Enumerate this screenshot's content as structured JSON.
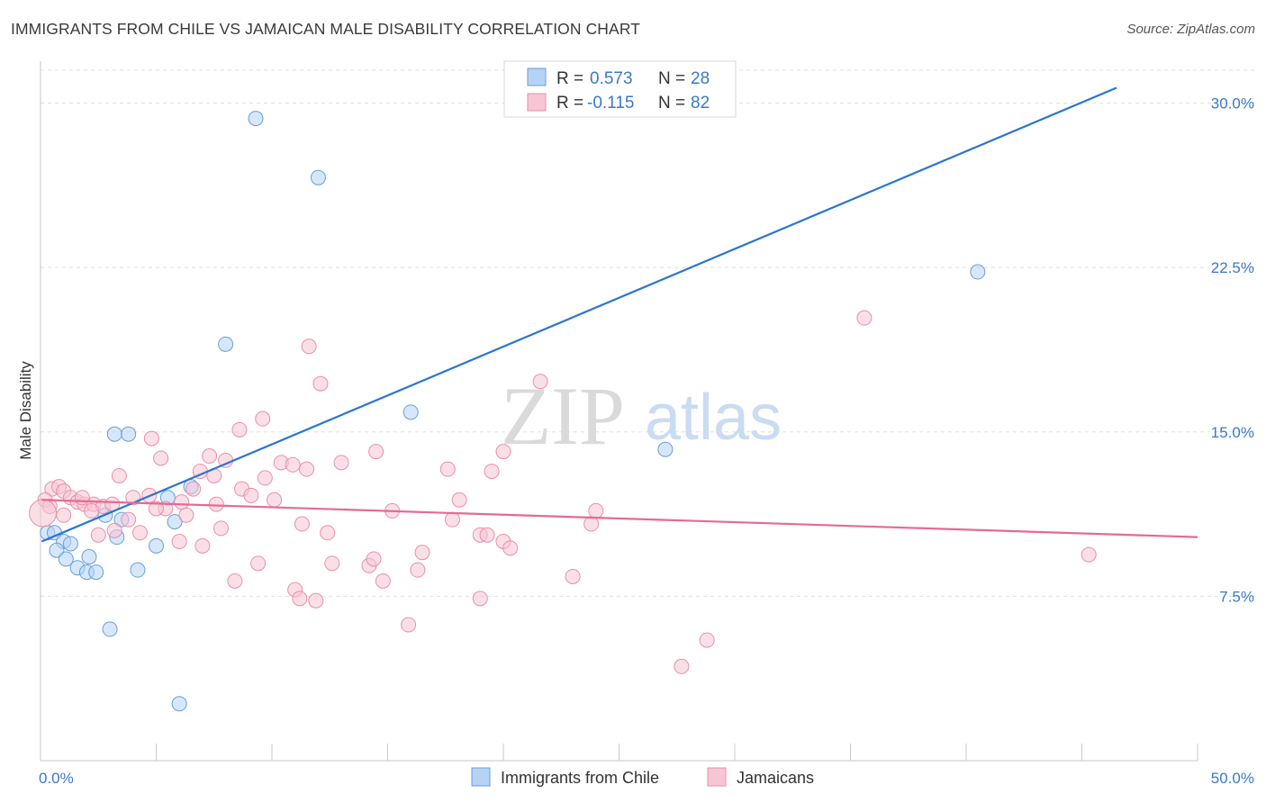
{
  "header": {
    "title": "IMMIGRANTS FROM CHILE VS JAMAICAN MALE DISABILITY CORRELATION CHART",
    "source": "Source: ZipAtlas.com"
  },
  "watermark": {
    "zip": "ZIP",
    "atlas": "atlas"
  },
  "legend": {
    "rows": [
      {
        "r_label": "R = ",
        "r_value": "0.573",
        "n_label": "N = ",
        "n_value": "28"
      },
      {
        "r_label": "R = ",
        "r_value": "-0.115",
        "n_label": "N = ",
        "n_value": "82"
      }
    ]
  },
  "colors": {
    "blue_fill": "#b6d3f5",
    "blue_stroke": "#6a9fd8",
    "blue_line": "#2b74d0",
    "pink_fill": "#f8c5d4",
    "pink_stroke": "#e98fab",
    "pink_line": "#e56a93",
    "tick_text": "#3b79c8",
    "grid": "#e0e0e0"
  },
  "chart_data": {
    "type": "scatter",
    "title": "IMMIGRANTS FROM CHILE VS JAMAICAN MALE DISABILITY CORRELATION CHART",
    "xlabel": "",
    "ylabel": "Male Disability",
    "xlim": [
      0,
      50
    ],
    "ylim": [
      0,
      31.5
    ],
    "x_tick_labels": [
      "0.0%",
      "50.0%"
    ],
    "y_ticks": [
      7.5,
      15.0,
      22.5,
      30.0
    ],
    "y_tick_labels": [
      "7.5%",
      "15.0%",
      "22.5%",
      "30.0%"
    ],
    "grid": true,
    "legend_position": "top-center",
    "series": [
      {
        "name": "Immigrants from Chile",
        "color": "#6a9fd8",
        "trend": {
          "x": [
            0.05,
            46.5
          ],
          "y": [
            10.0,
            30.7
          ]
        },
        "points": [
          [
            9.3,
            29.3
          ],
          [
            12.0,
            26.6
          ],
          [
            8.0,
            19.0
          ],
          [
            16.0,
            15.9
          ],
          [
            40.5,
            22.3
          ],
          [
            27.0,
            14.2
          ],
          [
            3.2,
            14.9
          ],
          [
            3.8,
            14.9
          ],
          [
            5.5,
            12.0
          ],
          [
            6.5,
            12.5
          ],
          [
            2.8,
            11.2
          ],
          [
            3.5,
            11.0
          ],
          [
            0.3,
            10.4
          ],
          [
            0.6,
            10.4
          ],
          [
            3.3,
            10.2
          ],
          [
            5.8,
            10.9
          ],
          [
            1.0,
            10.0
          ],
          [
            1.3,
            9.9
          ],
          [
            0.7,
            9.6
          ],
          [
            2.1,
            9.3
          ],
          [
            1.1,
            9.2
          ],
          [
            1.6,
            8.8
          ],
          [
            2.0,
            8.6
          ],
          [
            2.4,
            8.6
          ],
          [
            4.2,
            8.7
          ],
          [
            5.0,
            9.8
          ],
          [
            3.0,
            6.0
          ],
          [
            6.0,
            2.6
          ]
        ]
      },
      {
        "name": "Jamaicans",
        "color": "#e98fab",
        "trend": {
          "x": [
            0.05,
            50.0
          ],
          "y": [
            11.9,
            10.2
          ]
        },
        "points": [
          [
            35.6,
            20.2
          ],
          [
            11.6,
            18.9
          ],
          [
            12.1,
            17.2
          ],
          [
            21.6,
            17.3
          ],
          [
            9.6,
            15.6
          ],
          [
            8.6,
            15.1
          ],
          [
            4.8,
            14.7
          ],
          [
            5.2,
            13.8
          ],
          [
            7.3,
            13.9
          ],
          [
            10.4,
            13.6
          ],
          [
            10.9,
            13.5
          ],
          [
            11.5,
            13.3
          ],
          [
            13.0,
            13.6
          ],
          [
            14.5,
            14.1
          ],
          [
            17.6,
            13.3
          ],
          [
            19.5,
            13.2
          ],
          [
            20.0,
            14.1
          ],
          [
            6.9,
            13.2
          ],
          [
            7.5,
            13.0
          ],
          [
            8.0,
            13.7
          ],
          [
            3.4,
            13.0
          ],
          [
            0.5,
            12.4
          ],
          [
            0.8,
            12.5
          ],
          [
            1.0,
            12.3
          ],
          [
            1.3,
            12.0
          ],
          [
            1.6,
            11.8
          ],
          [
            1.9,
            11.7
          ],
          [
            2.3,
            11.7
          ],
          [
            2.7,
            11.6
          ],
          [
            3.1,
            11.7
          ],
          [
            0.2,
            11.9
          ],
          [
            4.0,
            12.0
          ],
          [
            5.4,
            11.5
          ],
          [
            6.1,
            11.8
          ],
          [
            7.6,
            11.7
          ],
          [
            8.7,
            12.4
          ],
          [
            9.1,
            12.1
          ],
          [
            9.7,
            12.9
          ],
          [
            4.7,
            12.1
          ],
          [
            6.3,
            11.2
          ],
          [
            3.2,
            10.5
          ],
          [
            4.3,
            10.4
          ],
          [
            2.5,
            10.3
          ],
          [
            3.8,
            11.0
          ],
          [
            7.8,
            10.6
          ],
          [
            11.3,
            10.8
          ],
          [
            12.4,
            10.4
          ],
          [
            15.2,
            11.4
          ],
          [
            17.8,
            11.0
          ],
          [
            18.1,
            11.9
          ],
          [
            19.0,
            10.3
          ],
          [
            19.3,
            10.3
          ],
          [
            20.0,
            10.0
          ],
          [
            20.3,
            9.7
          ],
          [
            24.0,
            11.4
          ],
          [
            23.8,
            10.8
          ],
          [
            6.0,
            10.0
          ],
          [
            7.0,
            9.8
          ],
          [
            9.4,
            9.0
          ],
          [
            12.6,
            9.0
          ],
          [
            14.2,
            8.9
          ],
          [
            14.4,
            9.2
          ],
          [
            16.3,
            8.7
          ],
          [
            8.4,
            8.2
          ],
          [
            11.0,
            7.8
          ],
          [
            11.2,
            7.4
          ],
          [
            11.9,
            7.3
          ],
          [
            14.8,
            8.2
          ],
          [
            19.0,
            7.4
          ],
          [
            23.0,
            8.4
          ],
          [
            15.9,
            6.2
          ],
          [
            28.8,
            5.5
          ],
          [
            27.7,
            4.3
          ],
          [
            45.3,
            9.4
          ],
          [
            1.0,
            11.2
          ],
          [
            2.2,
            11.4
          ],
          [
            5.0,
            11.5
          ],
          [
            0.4,
            11.6
          ],
          [
            1.8,
            12.0
          ],
          [
            16.5,
            9.5
          ],
          [
            6.6,
            12.4
          ],
          [
            10.1,
            11.9
          ]
        ]
      }
    ],
    "bottom_legend": [
      "Immigrants from Chile",
      "Jamaicans"
    ]
  }
}
